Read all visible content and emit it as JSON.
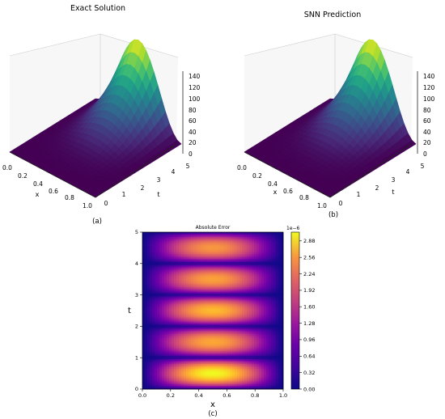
{
  "panel_captions": [
    "(a)",
    "(b)",
    "(c)"
  ],
  "chart_data": [
    {
      "type": "surface3d",
      "title": "Exact Solution",
      "xlabel": "x",
      "ylabel": "t",
      "x_ticks": [
        "0.0",
        "0.2",
        "0.4",
        "0.6",
        "0.8",
        "1.0"
      ],
      "t_ticks": [
        "0",
        "1",
        "2",
        "3",
        "4",
        "5"
      ],
      "z_ticks": [
        "0",
        "20",
        "40",
        "60",
        "80",
        "100",
        "120",
        "140"
      ],
      "xlim": [
        0,
        1
      ],
      "tlim": [
        0,
        5
      ],
      "zlim": [
        0,
        150
      ],
      "z_max": 148,
      "colormap": "viridis"
    },
    {
      "type": "surface3d",
      "title": "SNN Prediction",
      "xlabel": "x",
      "ylabel": "t",
      "x_ticks": [
        "0.0",
        "0.2",
        "0.4",
        "0.6",
        "0.8",
        "1.0"
      ],
      "t_ticks": [
        "0",
        "1",
        "2",
        "3",
        "4",
        "5"
      ],
      "z_ticks": [
        "0",
        "20",
        "40",
        "60",
        "80",
        "100",
        "120",
        "140"
      ],
      "xlim": [
        0,
        1
      ],
      "tlim": [
        0,
        5
      ],
      "zlim": [
        0,
        150
      ],
      "z_max": 148,
      "colormap": "viridis"
    },
    {
      "type": "heatmap",
      "title": "Absolute Error",
      "xlabel": "x",
      "ylabel": "t",
      "x_ticks": [
        "0.0",
        "0.2",
        "0.4",
        "0.6",
        "0.8",
        "1.0"
      ],
      "y_ticks": [
        "0",
        "1",
        "2",
        "3",
        "4",
        "5"
      ],
      "xlim": [
        0,
        1
      ],
      "ylim": [
        0,
        5
      ],
      "colorbar_ticks": [
        "0.00",
        "0.32",
        "0.64",
        "0.96",
        "1.28",
        "1.60",
        "1.92",
        "2.24",
        "2.56",
        "2.88"
      ],
      "colorbar_scale": "1e−6",
      "clim": [
        0,
        3.05e-06
      ],
      "colormap": "plasma",
      "band_peaks": [
        {
          "t": 0.5,
          "value": 3.05e-06
        },
        {
          "t": 1.5,
          "value": 2.45e-06
        },
        {
          "t": 2.5,
          "value": 2.6e-06
        },
        {
          "t": 3.5,
          "value": 2.4e-06
        },
        {
          "t": 4.5,
          "value": 2.3e-06
        }
      ]
    }
  ]
}
